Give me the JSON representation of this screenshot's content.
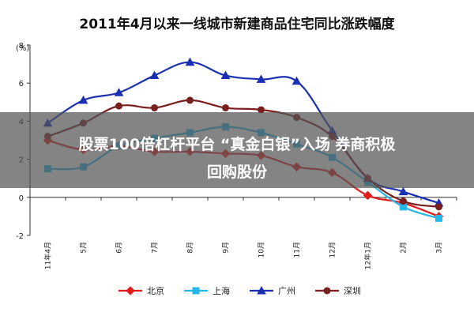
{
  "colors": {
    "beijing": "#e31a1c",
    "shanghai": "#25b7e8",
    "guangzhou": "#1a2fb2",
    "shenzhen": "#7a1e1e",
    "axis": "#333333",
    "overlay": "#555555",
    "overlay_text": "#ffffff"
  },
  "overlay": {
    "line1": "股票100倍杠杆平台 “真金白银”入场 券商积极",
    "line2": "回购股份"
  },
  "chart_data": {
    "type": "line",
    "title": "2011年4月以来一线城市新建商品住宅同比涨跌幅度",
    "ylabel": "(%)",
    "xlabel": "",
    "ylim": [
      -2,
      8
    ],
    "yticks": [
      -2,
      0,
      2,
      4,
      6,
      8
    ],
    "grid": false,
    "legend_position": "bottom",
    "categories": [
      "11年4月",
      "5月",
      "6月",
      "7月",
      "8月",
      "9月",
      "10月",
      "11月",
      "12月",
      "12年1月",
      "2月",
      "3月"
    ],
    "series": [
      {
        "name": "北京",
        "color": "#e31a1c",
        "marker": "diamond",
        "values": [
          3.0,
          2.5,
          2.7,
          2.4,
          2.4,
          2.3,
          2.2,
          1.6,
          1.3,
          0.1,
          -0.3,
          -1.0
        ]
      },
      {
        "name": "上海",
        "color": "#25b7e8",
        "marker": "square",
        "values": [
          1.5,
          1.6,
          2.7,
          3.1,
          3.4,
          3.7,
          3.4,
          2.8,
          2.1,
          0.8,
          -0.5,
          -1.1
        ]
      },
      {
        "name": "广州",
        "color": "#1a2fb2",
        "marker": "triangle",
        "values": [
          3.9,
          5.1,
          5.5,
          6.4,
          7.1,
          6.4,
          6.2,
          6.1,
          3.5,
          1.0,
          0.3,
          -0.3
        ]
      },
      {
        "name": "深圳",
        "color": "#7a1e1e",
        "marker": "circle",
        "values": [
          3.2,
          3.9,
          4.8,
          4.7,
          5.1,
          4.7,
          4.6,
          4.2,
          3.2,
          1.0,
          -0.2,
          -0.5
        ]
      }
    ]
  }
}
